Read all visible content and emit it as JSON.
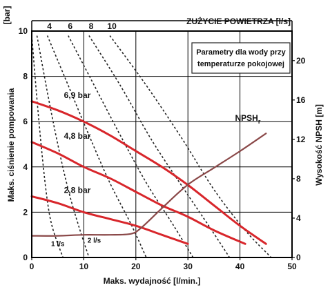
{
  "chart_data": {
    "type": "line",
    "title": "",
    "xlabel": "Maks. wydajność [l/min.]",
    "ylabel_left": "Maks. ciśnienie pompowania",
    "ylabel_left_unit": "[bar]",
    "ylabel_right": "Wysokość NPSH [m]",
    "top_axis_label": "ZUŻYCIE POWIETRZA [l/s]",
    "note_lines": [
      "Parametry dla wody przy",
      "temperaturze pokojowej"
    ],
    "xlim": [
      0,
      50
    ],
    "ylim_left": [
      0,
      10
    ],
    "ylim_right": [
      0,
      23
    ],
    "grid": true,
    "xticks": [
      0,
      10,
      20,
      30,
      40,
      50
    ],
    "yticks_left": [
      0,
      2,
      4,
      6,
      8,
      10
    ],
    "yticks_right": [
      0,
      4,
      8,
      12,
      16,
      20
    ],
    "top_ticks": [
      "4",
      "6",
      "8",
      "10"
    ],
    "colors": {
      "pressure": "#d8262b",
      "npsh": "#8a4848",
      "air": "#222222",
      "grid": "#000000"
    },
    "pressure_series": [
      {
        "name": "6,9 bar",
        "x": [
          0,
          5,
          10,
          15,
          20,
          25,
          30,
          35,
          40,
          45
        ],
        "y": [
          6.9,
          6.5,
          6.0,
          5.4,
          4.7,
          4.0,
          3.2,
          2.3,
          1.4,
          0.6
        ]
      },
      {
        "name": "4,8 bar",
        "x": [
          0,
          5,
          10,
          15,
          20,
          25,
          30,
          35,
          41
        ],
        "y": [
          5.1,
          4.6,
          4.0,
          3.5,
          2.9,
          2.3,
          1.8,
          1.2,
          0.6
        ]
      },
      {
        "name": "2,8 bar",
        "x": [
          0,
          5,
          10,
          15,
          20,
          25,
          30
        ],
        "y": [
          2.7,
          2.4,
          2.0,
          1.7,
          1.4,
          1.0,
          0.6
        ]
      }
    ],
    "npsh_series": {
      "name": "NPSH",
      "name_sub": "r",
      "x": [
        0,
        5,
        10,
        15,
        19,
        21,
        25,
        30,
        35,
        40,
        45
      ],
      "y": [
        2.2,
        2.2,
        2.3,
        2.3,
        2.4,
        3.0,
        5.0,
        7.4,
        9.1,
        10.8,
        12.6
      ]
    },
    "air_curves": [
      {
        "name": "1 l/s",
        "x": [
          0,
          1,
          2,
          3,
          4,
          6
        ],
        "y": [
          9.8,
          7.0,
          4.5,
          2.5,
          1.3,
          0
        ]
      },
      {
        "name": "2 l/s",
        "x": [
          1,
          3,
          5,
          7,
          9,
          11
        ],
        "y": [
          9.8,
          7.3,
          5.0,
          3.0,
          1.4,
          0
        ]
      },
      {
        "name": "4",
        "x": [
          3,
          7,
          11,
          15,
          19,
          22
        ],
        "y": [
          9.8,
          7.6,
          5.4,
          3.3,
          1.5,
          0
        ]
      },
      {
        "name": "6",
        "x": [
          7,
          12,
          17,
          22,
          27,
          31
        ],
        "y": [
          9.8,
          7.6,
          5.4,
          3.3,
          1.5,
          0
        ]
      },
      {
        "name": "8",
        "x": [
          11,
          17,
          23,
          29,
          34,
          38
        ],
        "y": [
          9.8,
          7.6,
          5.2,
          3.1,
          1.4,
          0
        ]
      },
      {
        "name": "10",
        "x": [
          15,
          22,
          29,
          35,
          41,
          46
        ],
        "y": [
          9.8,
          7.6,
          5.2,
          3.0,
          1.2,
          0
        ]
      }
    ],
    "air_curve_labels": [
      "1 l/s",
      "2 l/s"
    ]
  }
}
